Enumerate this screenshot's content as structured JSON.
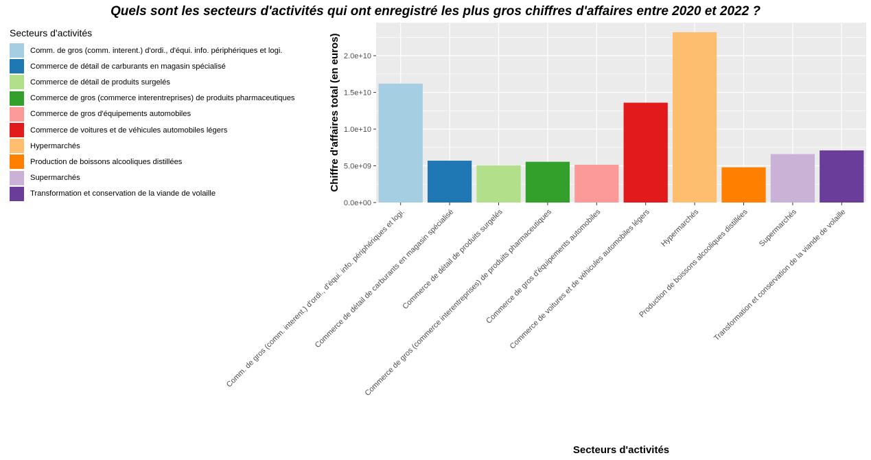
{
  "chart_data": {
    "type": "bar",
    "title": "Quels sont les secteurs d'activités qui ont enregistré les plus gros chiffres d'affaires entre 2020 et 2022 ?",
    "xlabel": "Secteurs d'activités",
    "ylabel": "Chiffre d'affaires total (en euros)",
    "legend_title": "Secteurs d'activités",
    "legend_position": "left",
    "grid": true,
    "ylim": [
      0,
      24500000000.0
    ],
    "yticks": [
      0,
      5000000000.0,
      10000000000.0,
      15000000000.0,
      20000000000.0
    ],
    "ytick_labels": [
      "0.0e+00",
      "5.0e+09",
      "1.0e+10",
      "1.5e+10",
      "2.0e+10"
    ],
    "categories": [
      "Comm. de gros (comm. interent.) d'ordi., d'équi. info. périphériques et logi.",
      "Commerce de détail de carburants en magasin spécialisé",
      "Commerce de détail de produits surgelés",
      "Commerce de gros (commerce interentreprises) de produits pharmaceutiques",
      "Commerce de gros d'équipements automobiles",
      "Commerce de voitures et de véhicules automobiles légers",
      "Hypermarchés",
      "Production de boissons alcooliques distillées",
      "Supermarchés",
      "Transformation et conservation de la viande de volaille"
    ],
    "values": [
      16200000000.0,
      5700000000.0,
      5050000000.0,
      5550000000.0,
      5150000000.0,
      13600000000.0,
      23200000000.0,
      4800000000.0,
      6600000000.0,
      7100000000.0
    ],
    "colors": [
      "#A6CEE3",
      "#1F78B4",
      "#B2DF8A",
      "#33A02C",
      "#FB9A99",
      "#E31A1C",
      "#FDBF6F",
      "#FF7F00",
      "#CAB2D6",
      "#6A3D9A"
    ]
  }
}
